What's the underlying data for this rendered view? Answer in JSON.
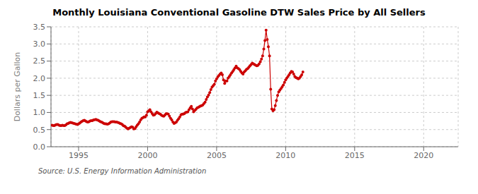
{
  "chart_data": {
    "type": "line",
    "title": "Monthly Louisiana Conventional Gasoline DTW Sales Price by All Sellers",
    "y_label": "Dollars per Gallon",
    "annotation": "Source: U.S. Energy Information Administration",
    "xlim": [
      1993.0,
      2022.5
    ],
    "ylim": [
      0.0,
      3.5
    ],
    "xticks": [
      1995,
      2000,
      2005,
      2010,
      2015,
      2020
    ],
    "yticks": [
      {
        "value": 0.0,
        "label": "0.0"
      },
      0.5,
      {
        "value": 1.0,
        "label": "1.0"
      },
      1.5,
      {
        "value": 2.0,
        "label": "2.0"
      },
      2.5,
      {
        "value": 3.0,
        "label": "3.0"
      },
      3.5
    ],
    "grid": true,
    "color": "#CC0000",
    "marker": "circle",
    "x": [
      1993.083,
      1993.167,
      1993.25,
      1993.333,
      1993.417,
      1993.5,
      1993.583,
      1993.667,
      1993.75,
      1993.833,
      1993.917,
      1994.0,
      1994.083,
      1994.167,
      1994.25,
      1994.333,
      1994.417,
      1994.5,
      1994.583,
      1994.667,
      1994.75,
      1994.833,
      1994.917,
      1995.0,
      1995.083,
      1995.167,
      1995.25,
      1995.333,
      1995.417,
      1995.5,
      1995.583,
      1995.667,
      1995.75,
      1995.833,
      1995.917,
      1996.0,
      1996.083,
      1996.167,
      1996.25,
      1996.333,
      1996.417,
      1996.5,
      1996.583,
      1996.667,
      1996.75,
      1996.833,
      1996.917,
      1997.0,
      1997.083,
      1997.167,
      1997.25,
      1997.333,
      1997.417,
      1997.5,
      1997.583,
      1997.667,
      1997.75,
      1997.833,
      1997.917,
      1998.0,
      1998.083,
      1998.167,
      1998.25,
      1998.333,
      1998.417,
      1998.5,
      1998.583,
      1998.667,
      1998.75,
      1998.833,
      1998.917,
      1999.0,
      1999.083,
      1999.167,
      1999.25,
      1999.333,
      1999.417,
      1999.5,
      1999.583,
      1999.667,
      1999.75,
      1999.833,
      1999.917,
      2000.0,
      2000.083,
      2000.167,
      2000.25,
      2000.333,
      2000.417,
      2000.5,
      2000.583,
      2000.667,
      2000.75,
      2000.833,
      2000.917,
      2001.0,
      2001.083,
      2001.167,
      2001.25,
      2001.333,
      2001.417,
      2001.5,
      2001.583,
      2001.667,
      2001.75,
      2001.833,
      2001.917,
      2002.0,
      2002.083,
      2002.167,
      2002.25,
      2002.333,
      2002.417,
      2002.5,
      2002.583,
      2002.667,
      2002.75,
      2002.833,
      2002.917,
      2003.0,
      2003.083,
      2003.167,
      2003.25,
      2003.333,
      2003.417,
      2003.5,
      2003.583,
      2003.667,
      2003.75,
      2003.833,
      2003.917,
      2004.0,
      2004.083,
      2004.167,
      2004.25,
      2004.333,
      2004.417,
      2004.5,
      2004.583,
      2004.667,
      2004.75,
      2004.833,
      2004.917,
      2005.0,
      2005.083,
      2005.167,
      2005.25,
      2005.333,
      2005.417,
      2005.5,
      2005.583,
      2005.667,
      2005.75,
      2005.833,
      2005.917,
      2006.0,
      2006.083,
      2006.167,
      2006.25,
      2006.333,
      2006.417,
      2006.5,
      2006.583,
      2006.667,
      2006.75,
      2006.833,
      2006.917,
      2007.0,
      2007.083,
      2007.167,
      2007.25,
      2007.333,
      2007.417,
      2007.5,
      2007.583,
      2007.667,
      2007.75,
      2007.833,
      2007.917,
      2008.0,
      2008.083,
      2008.167,
      2008.25,
      2008.333,
      2008.417,
      2008.5,
      2008.583,
      2008.667,
      2008.75,
      2008.833,
      2008.917,
      2009.0,
      2009.083,
      2009.167,
      2009.25,
      2009.333,
      2009.417,
      2009.5,
      2009.583,
      2009.667,
      2009.75,
      2009.833,
      2009.917,
      2010.0,
      2010.083,
      2010.167,
      2010.25,
      2010.333,
      2010.417,
      2010.5,
      2010.583,
      2010.667,
      2010.75,
      2010.833,
      2010.917,
      2011.0,
      2011.083,
      2011.167,
      2011.25
    ],
    "values": [
      0.63,
      0.62,
      0.62,
      0.64,
      0.65,
      0.65,
      0.63,
      0.62,
      0.62,
      0.63,
      0.62,
      0.62,
      0.64,
      0.67,
      0.68,
      0.7,
      0.71,
      0.7,
      0.69,
      0.68,
      0.67,
      0.66,
      0.65,
      0.67,
      0.69,
      0.72,
      0.74,
      0.76,
      0.77,
      0.75,
      0.73,
      0.72,
      0.73,
      0.75,
      0.76,
      0.76,
      0.78,
      0.79,
      0.8,
      0.78,
      0.77,
      0.75,
      0.73,
      0.72,
      0.7,
      0.68,
      0.67,
      0.67,
      0.66,
      0.67,
      0.69,
      0.72,
      0.73,
      0.73,
      0.73,
      0.72,
      0.72,
      0.71,
      0.7,
      0.68,
      0.67,
      0.65,
      0.61,
      0.6,
      0.57,
      0.54,
      0.52,
      0.54,
      0.56,
      0.58,
      0.57,
      0.52,
      0.53,
      0.58,
      0.63,
      0.67,
      0.72,
      0.78,
      0.83,
      0.85,
      0.87,
      0.87,
      0.92,
      1.02,
      1.05,
      1.08,
      1.02,
      0.97,
      0.92,
      0.93,
      0.97,
      1.01,
      0.99,
      0.97,
      0.95,
      0.92,
      0.9,
      0.89,
      0.92,
      0.96,
      0.96,
      0.95,
      0.89,
      0.83,
      0.78,
      0.72,
      0.68,
      0.7,
      0.72,
      0.77,
      0.82,
      0.87,
      0.93,
      0.95,
      0.95,
      0.97,
      1.0,
      1.01,
      1.02,
      1.08,
      1.13,
      1.18,
      1.1,
      1.02,
      1.06,
      1.09,
      1.13,
      1.15,
      1.17,
      1.19,
      1.2,
      1.22,
      1.26,
      1.3,
      1.38,
      1.45,
      1.51,
      1.58,
      1.67,
      1.74,
      1.78,
      1.82,
      1.92,
      1.98,
      2.04,
      2.08,
      2.12,
      2.15,
      2.1,
      1.95,
      1.85,
      1.92,
      1.92,
      2.0,
      2.05,
      2.1,
      2.15,
      2.2,
      2.25,
      2.3,
      2.35,
      2.3,
      2.28,
      2.25,
      2.2,
      2.15,
      2.12,
      2.18,
      2.22,
      2.26,
      2.28,
      2.32,
      2.36,
      2.4,
      2.44,
      2.42,
      2.4,
      2.38,
      2.36,
      2.38,
      2.42,
      2.48,
      2.56,
      2.65,
      2.85,
      3.1,
      3.4,
      3.13,
      2.92,
      2.65,
      1.68,
      1.1,
      1.05,
      1.08,
      1.2,
      1.35,
      1.5,
      1.6,
      1.65,
      1.7,
      1.75,
      1.8,
      1.88,
      1.95,
      2.0,
      2.05,
      2.1,
      2.15,
      2.2,
      2.18,
      2.12,
      2.05,
      2.02,
      2.0,
      1.98,
      2.0,
      2.05,
      2.1,
      2.18
    ]
  }
}
